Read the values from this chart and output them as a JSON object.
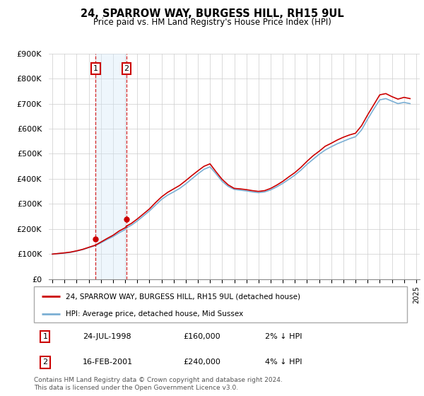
{
  "title": "24, SPARROW WAY, BURGESS HILL, RH15 9UL",
  "subtitle": "Price paid vs. HM Land Registry's House Price Index (HPI)",
  "ylim": [
    0,
    900000
  ],
  "xlim_start": 1995,
  "xlim_end": 2025,
  "sale1_year": 1998.56,
  "sale1_price": 160000,
  "sale2_year": 2001.12,
  "sale2_price": 240000,
  "sale1_date": "24-JUL-1998",
  "sale1_amount": "£160,000",
  "sale1_pct": "2% ↓ HPI",
  "sale2_date": "16-FEB-2001",
  "sale2_amount": "£240,000",
  "sale2_pct": "4% ↓ HPI",
  "line_color_red": "#cc0000",
  "line_color_blue": "#7bafd4",
  "vline_color": "#cc0000",
  "box_color": "#cc0000",
  "shade_color": "#d0e8f8",
  "legend1": "24, SPARROW WAY, BURGESS HILL, RH15 9UL (detached house)",
  "legend2": "HPI: Average price, detached house, Mid Sussex",
  "footer": "Contains HM Land Registry data © Crown copyright and database right 2024.\nThis data is licensed under the Open Government Licence v3.0.",
  "yticks": [
    0,
    100000,
    200000,
    300000,
    400000,
    500000,
    600000,
    700000,
    800000,
    900000
  ],
  "ytick_labels": [
    "£0",
    "£100K",
    "£200K",
    "£300K",
    "£400K",
    "£500K",
    "£600K",
    "£700K",
    "£800K",
    "£900K"
  ],
  "hpi_years": [
    1995.0,
    1995.5,
    1996.0,
    1996.5,
    1997.0,
    1997.5,
    1998.0,
    1998.56,
    1999.0,
    1999.5,
    2000.0,
    2000.5,
    2001.0,
    2001.12,
    2001.5,
    2002.0,
    2002.5,
    2003.0,
    2003.5,
    2004.0,
    2004.5,
    2005.0,
    2005.5,
    2006.0,
    2006.5,
    2007.0,
    2007.5,
    2008.0,
    2008.5,
    2009.0,
    2009.5,
    2010.0,
    2010.5,
    2011.0,
    2011.5,
    2012.0,
    2012.5,
    2013.0,
    2013.5,
    2014.0,
    2014.5,
    2015.0,
    2015.5,
    2016.0,
    2016.5,
    2017.0,
    2017.5,
    2018.0,
    2018.5,
    2019.0,
    2019.5,
    2020.0,
    2020.5,
    2021.0,
    2021.5,
    2022.0,
    2022.5,
    2023.0,
    2023.5,
    2024.0,
    2024.5
  ],
  "hpi_vals": [
    100000,
    102000,
    104000,
    107000,
    112000,
    118000,
    126000,
    134000,
    145000,
    158000,
    170000,
    185000,
    198000,
    205000,
    215000,
    232000,
    252000,
    272000,
    295000,
    318000,
    335000,
    348000,
    362000,
    380000,
    400000,
    420000,
    438000,
    448000,
    420000,
    390000,
    370000,
    358000,
    355000,
    352000,
    348000,
    345000,
    348000,
    356000,
    368000,
    382000,
    398000,
    415000,
    435000,
    458000,
    478000,
    498000,
    515000,
    528000,
    540000,
    550000,
    560000,
    568000,
    595000,
    638000,
    678000,
    715000,
    720000,
    710000,
    700000,
    705000,
    700000
  ],
  "red_vals": [
    100000,
    102500,
    105000,
    108000,
    113000,
    119000,
    127000,
    136000,
    148000,
    162000,
    175000,
    192000,
    205000,
    212000,
    222000,
    240000,
    260000,
    280000,
    305000,
    328000,
    346000,
    360000,
    374000,
    393000,
    413000,
    432000,
    450000,
    460000,
    428000,
    398000,
    376000,
    362000,
    360000,
    357000,
    353000,
    350000,
    353000,
    362000,
    375000,
    390000,
    408000,
    425000,
    446000,
    470000,
    492000,
    510000,
    530000,
    542000,
    555000,
    566000,
    575000,
    582000,
    612000,
    655000,
    695000,
    735000,
    740000,
    728000,
    718000,
    725000,
    720000
  ]
}
